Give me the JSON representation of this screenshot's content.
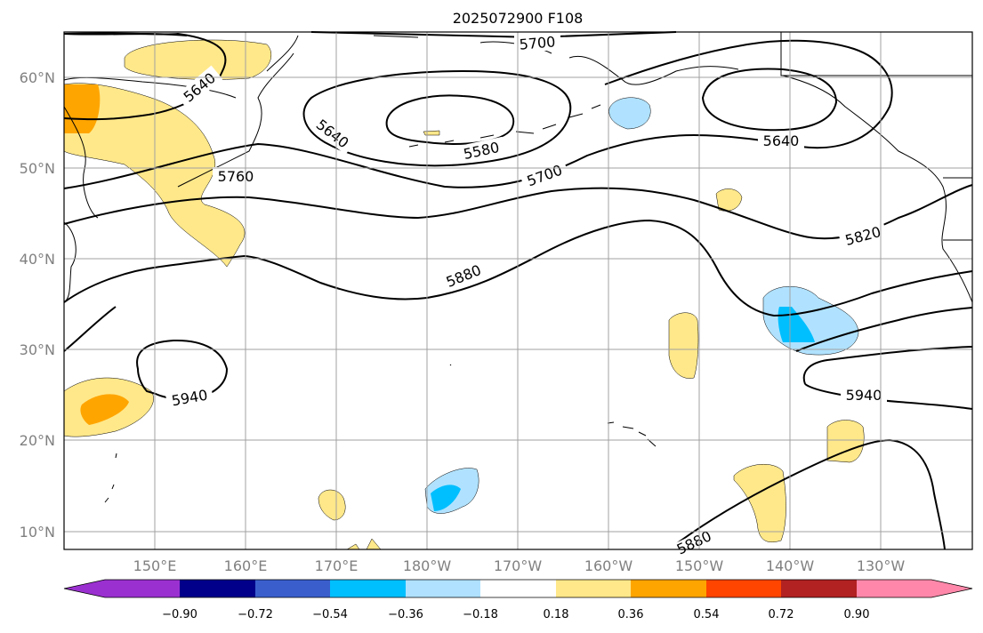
{
  "title": "2025072900 F108",
  "lat_labels": [
    "60°N",
    "50°N",
    "40°N",
    "30°N",
    "20°N",
    "10°N"
  ],
  "lon_labels": [
    "150°E",
    "160°E",
    "170°E",
    "180°W",
    "170°W",
    "160°W",
    "150°W",
    "140°W",
    "130°W"
  ],
  "contour_labels": {
    "c5700_top": "5700",
    "c5640_nw": "5640",
    "c5640_mid": "5640",
    "c5580": "5580",
    "c5700": "5700",
    "c5640_ne": "5640",
    "c5760": "5760",
    "c5820": "5820",
    "c5880": "5880",
    "c5940_w": "5940",
    "c5940_e": "5940",
    "c5880_bottom": "5880"
  },
  "colorbar": {
    "ticks": [
      "−0.90",
      "−0.72",
      "−0.54",
      "−0.36",
      "−0.18",
      "0.18",
      "0.36",
      "0.54",
      "0.72",
      "0.90"
    ],
    "colors": [
      "#9b30d0",
      "#00008b",
      "#3a5fcd",
      "#00bfff",
      "#b0e2ff",
      "#ffffff",
      "#ffe88a",
      "#ffa500",
      "#ff4500",
      "#b22222",
      "#ff88aa"
    ]
  }
}
